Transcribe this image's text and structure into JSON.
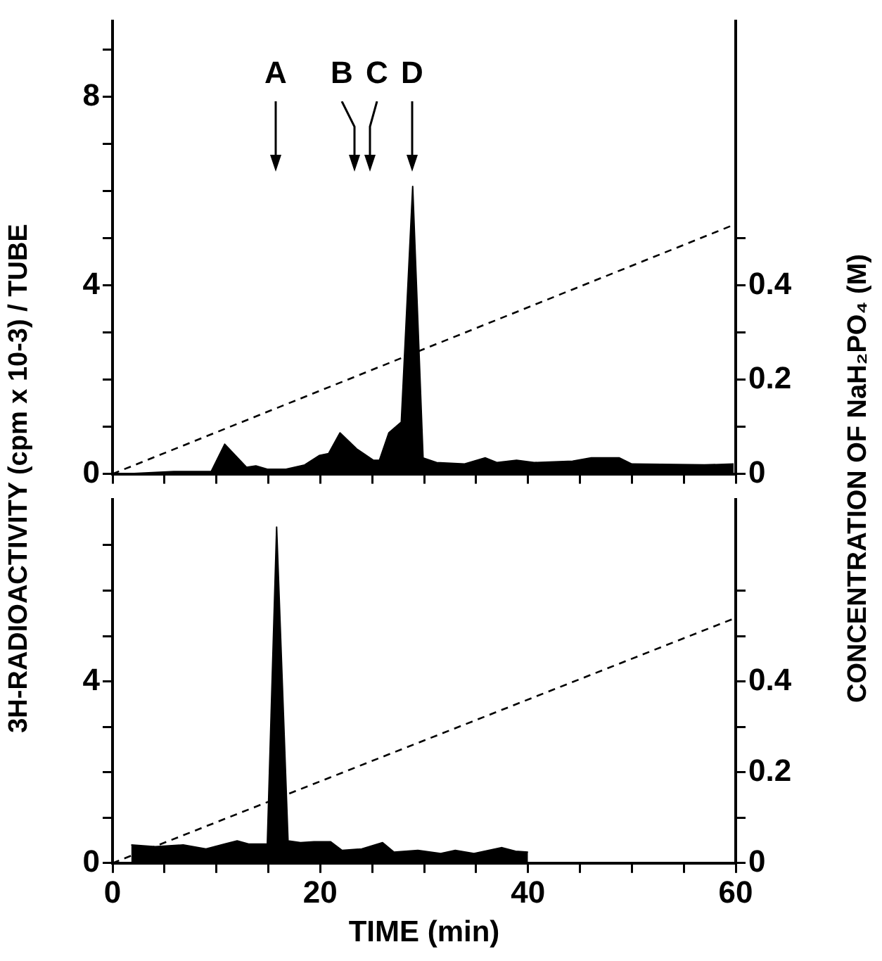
{
  "chart_data": [
    {
      "type": "area",
      "ylabel": "3H-RADIOACTIVITY (cpm x 10-3) / TUBE",
      "y2label": "CONCENTRATION OF NaH₂PO₄ (M)",
      "marker": "none",
      "tick_labels": "y",
      "xlim": [
        0,
        60
      ],
      "xticks": [
        {
          "value": 0,
          "label": null
        },
        {
          "value": 5,
          "label": null
        },
        {
          "value": 10,
          "label": null
        },
        {
          "value": 15,
          "label": null
        },
        {
          "value": 20,
          "label": null
        },
        {
          "value": 25,
          "label": null
        },
        {
          "value": 30,
          "label": null
        },
        {
          "value": 35,
          "label": null
        },
        {
          "value": 40,
          "label": null
        },
        {
          "value": 45,
          "label": null
        },
        {
          "value": 50,
          "label": null
        },
        {
          "value": 55,
          "label": null
        },
        {
          "value": 60,
          "label": null
        }
      ],
      "ylim": [
        0,
        9.6
      ],
      "yticks": [
        0,
        {
          "value": 1,
          "label": null
        },
        {
          "value": 2,
          "label": null
        },
        {
          "value": 3,
          "label": null
        },
        4,
        {
          "value": 5,
          "label": null
        },
        {
          "value": 6,
          "label": null
        },
        {
          "value": 7,
          "label": null
        },
        8,
        {
          "value": 9,
          "label": null
        }
      ],
      "y2lim": [
        0,
        0.96
      ],
      "y2ticks": [
        0,
        {
          "value": 0.1,
          "label": null
        },
        0.2,
        {
          "value": 0.3,
          "label": null
        },
        0.4,
        {
          "value": 0.5,
          "label": null
        }
      ],
      "annotations": [
        "A",
        "B",
        "C",
        "D"
      ],
      "series": [
        {
          "type": "area",
          "color": "#000000",
          "x": [
            1.4,
            5.9,
            9.5,
            10.8,
            12.9,
            13.8,
            14.9,
            16.7,
            18.5,
            19.9,
            20.8,
            21.9,
            23.5,
            25.1,
            25.7,
            26.6,
            27.8,
            28.9,
            29.9,
            31.2,
            33.9,
            35.9,
            37.0,
            38.9,
            40.6,
            44.3,
            46.1,
            48.8,
            50.0,
            57.0,
            59.8
          ],
          "values": [
            0,
            0.05,
            0.05,
            0.63,
            0.14,
            0.17,
            0.1,
            0.1,
            0.19,
            0.39,
            0.43,
            0.87,
            0.53,
            0.29,
            0.29,
            0.87,
            1.1,
            6.1,
            0.34,
            0.24,
            0.21,
            0.34,
            0.24,
            0.29,
            0.24,
            0.27,
            0.34,
            0.34,
            0.21,
            0.19,
            0.21
          ]
        },
        {
          "type": "line",
          "color": "#000000",
          "axis": "y2",
          "line_style": "dashed",
          "x": [
            0,
            60
          ],
          "values": [
            0,
            0.53
          ]
        }
      ]
    },
    {
      "type": "area",
      "xlabel": "TIME (min)",
      "marker": "none",
      "xlim": [
        0,
        60
      ],
      "xticks": [
        0,
        {
          "value": 5,
          "label": null
        },
        {
          "value": 10,
          "label": null
        },
        {
          "value": 15,
          "label": null
        },
        20,
        {
          "value": 25,
          "label": null
        },
        {
          "value": 30,
          "label": null
        },
        {
          "value": 35,
          "label": null
        },
        40,
        {
          "value": 45,
          "label": null
        },
        {
          "value": 50,
          "label": null
        },
        {
          "value": 55,
          "label": null
        },
        60
      ],
      "ylim": [
        0,
        8
      ],
      "yticks": [
        0,
        {
          "value": 1,
          "label": null
        },
        {
          "value": 2,
          "label": null
        },
        {
          "value": 3,
          "label": null
        },
        4,
        {
          "value": 5,
          "label": null
        },
        {
          "value": 6,
          "label": null
        },
        {
          "value": 7,
          "label": null
        }
      ],
      "y2lim": [
        0,
        0.8
      ],
      "y2ticks": [
        0,
        {
          "value": 0.1,
          "label": null
        },
        0.2,
        {
          "value": 0.3,
          "label": null
        },
        0.4,
        {
          "value": 0.5,
          "label": null
        },
        {
          "value": 0.6,
          "label": null
        }
      ],
      "series": [
        {
          "type": "area",
          "color": "#000000",
          "x": [
            1.8,
            4.1,
            6.8,
            9.0,
            10.8,
            12.0,
            13.1,
            14.9,
            15.8,
            16.9,
            18.1,
            19.4,
            21.0,
            22.1,
            24.0,
            26.0,
            27.1,
            29.4,
            31.6,
            33.0,
            34.8,
            37.5,
            38.8,
            40.0
          ],
          "values": [
            0.4,
            0.36,
            0.4,
            0.31,
            0.42,
            0.49,
            0.42,
            0.42,
            7.4,
            0.49,
            0.45,
            0.47,
            0.47,
            0.28,
            0.31,
            0.45,
            0.24,
            0.28,
            0.21,
            0.28,
            0.21,
            0.34,
            0.26,
            0.24
          ]
        },
        {
          "type": "line",
          "color": "#000000",
          "axis": "y2",
          "line_style": "dashed",
          "x": [
            0,
            60
          ],
          "values": [
            0,
            0.54
          ]
        }
      ]
    }
  ]
}
